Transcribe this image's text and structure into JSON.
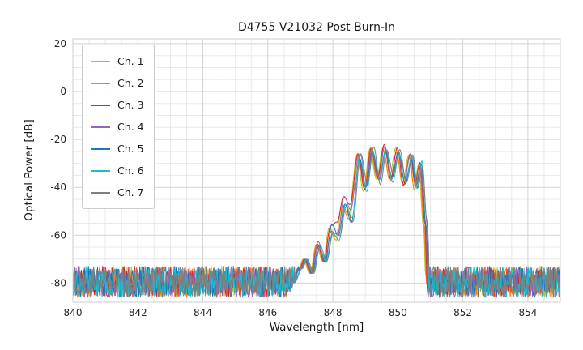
{
  "chart_data": {
    "type": "line",
    "title": "D4755 V21032 Post Burn-In",
    "xlabel": "Wavelength [nm]",
    "ylabel": "Optical Power [dB]",
    "xlim": [
      840,
      855
    ],
    "ylim": [
      -88,
      22
    ],
    "x_major_ticks": [
      840,
      842,
      844,
      846,
      848,
      850,
      852,
      854
    ],
    "x_minor_step": 0.5,
    "y_major_ticks": [
      20,
      0,
      -20,
      -40,
      -60,
      -80
    ],
    "y_minor_step": 5,
    "grid": true,
    "legend_position": "upper-left",
    "grid_major_color": "#d3d3d3",
    "grid_minor_color": "#e9e9e9",
    "border_color": "#cccccc",
    "noise": {
      "floor_db": -79.5,
      "amplitude_db": 6.5
    },
    "envelope_db": [
      [
        846.5,
        -92
      ],
      [
        846.75,
        -80
      ],
      [
        847.0,
        -74
      ],
      [
        847.15,
        -70
      ],
      [
        847.35,
        -76
      ],
      [
        847.55,
        -64
      ],
      [
        847.75,
        -71
      ],
      [
        847.95,
        -57
      ],
      [
        848.15,
        -61
      ],
      [
        848.35,
        -48
      ],
      [
        848.55,
        -53
      ],
      [
        848.8,
        -27
      ],
      [
        849.0,
        -40
      ],
      [
        849.2,
        -24
      ],
      [
        849.4,
        -37
      ],
      [
        849.6,
        -23.5
      ],
      [
        849.8,
        -36
      ],
      [
        850.0,
        -24.5
      ],
      [
        850.2,
        -38
      ],
      [
        850.4,
        -27
      ],
      [
        850.55,
        -40
      ],
      [
        850.7,
        -30
      ],
      [
        850.85,
        -55
      ],
      [
        850.95,
        -92
      ]
    ],
    "series": [
      {
        "name": "Ch. 1",
        "color": "#bcbd22",
        "x_offset": -0.06,
        "seed": 11
      },
      {
        "name": "Ch. 2",
        "color": "#ff7f0e",
        "x_offset": -0.04,
        "seed": 22
      },
      {
        "name": "Ch. 3",
        "color": "#d62728",
        "x_offset": -0.02,
        "seed": 33,
        "prelobe_boost": 6
      },
      {
        "name": "Ch. 4",
        "color": "#9467bd",
        "x_offset": 0.0,
        "seed": 44,
        "prelobe_boost": 3
      },
      {
        "name": "Ch. 5",
        "color": "#1f77b4",
        "x_offset": 0.02,
        "seed": 55
      },
      {
        "name": "Ch. 6",
        "color": "#17becf",
        "x_offset": 0.04,
        "seed": 66
      },
      {
        "name": "Ch. 7",
        "color": "#7f7f7f",
        "x_offset": 0.06,
        "seed": 77
      }
    ]
  }
}
